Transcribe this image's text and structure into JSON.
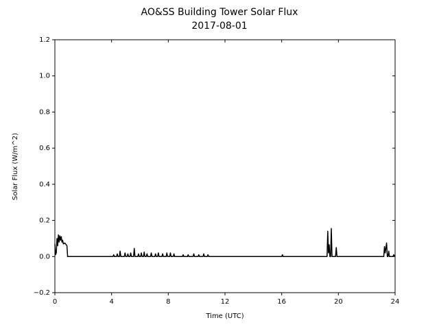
{
  "chart_data": {
    "type": "line",
    "title": "AO&SS Building Tower Solar Flux",
    "subtitle": "2017-08-01",
    "x_label": "Time (UTC)",
    "y_label": "Solar Flux (W/m^2)",
    "color": "#000000",
    "xlim": [
      0,
      24
    ],
    "xticks": [
      0,
      4,
      8,
      12,
      16,
      20,
      24
    ],
    "ylim": [
      -0.2,
      1.2
    ],
    "yticks": [
      {
        "value": -0.2,
        "label": "−0.2"
      },
      {
        "value": 0,
        "label": "0.0"
      },
      0.2,
      0.4,
      0.6,
      0.8,
      {
        "value": 1,
        "label": "1.0"
      },
      1.2
    ],
    "x": [
      0,
      0.05,
      0.1,
      0.15,
      0.2,
      0.25,
      0.3,
      0.35,
      0.4,
      0.45,
      0.5,
      0.55,
      0.6,
      0.7,
      0.8,
      0.85,
      0.9,
      4.1,
      4.15,
      4.2,
      4.35,
      4.4,
      4.45,
      4.55,
      4.6,
      4.65,
      4.9,
      4.95,
      5.0,
      5.1,
      5.15,
      5.2,
      5.3,
      5.35,
      5.4,
      5.55,
      5.6,
      5.65,
      5.85,
      5.9,
      5.95,
      6.05,
      6.1,
      6.15,
      6.25,
      6.3,
      6.35,
      6.45,
      6.5,
      6.55,
      6.75,
      6.8,
      6.85,
      7.05,
      7.1,
      7.15,
      7.25,
      7.3,
      7.35,
      7.55,
      7.6,
      7.65,
      7.85,
      7.9,
      7.95,
      8.1,
      8.15,
      8.2,
      8.35,
      8.4,
      8.45,
      9.0,
      9.05,
      9.1,
      9.35,
      9.4,
      9.45,
      9.75,
      9.8,
      9.85,
      10.1,
      10.15,
      10.2,
      10.45,
      10.5,
      10.55,
      10.75,
      10.8,
      10.85,
      16.0,
      16.05,
      16.1,
      19.2,
      19.25,
      19.3,
      19.35,
      19.4,
      19.45,
      19.5,
      19.55,
      19.8,
      19.85,
      19.9,
      23.2,
      23.25,
      23.3,
      23.4,
      23.45,
      23.5,
      23.55,
      23.6,
      23.85,
      23.9,
      24
    ],
    "values": [
      0.07,
      0.01,
      0.02,
      0.1,
      0.06,
      0.12,
      0.08,
      0.115,
      0.09,
      0.11,
      0.08,
      0.09,
      0.07,
      0.075,
      0.065,
      0.06,
      0,
      0,
      0.01,
      0,
      0,
      0.015,
      0,
      0,
      0.03,
      0,
      0,
      0.02,
      0,
      0,
      0.015,
      0,
      0,
      0.02,
      0,
      0,
      0.045,
      0,
      0,
      0.015,
      0,
      0,
      0.02,
      0,
      0,
      0.025,
      0,
      0,
      0.015,
      0,
      0,
      0.02,
      0,
      0,
      0.015,
      0,
      0,
      0.02,
      0,
      0,
      0.015,
      0,
      0,
      0.02,
      0,
      0,
      0.02,
      0,
      0,
      0.015,
      0,
      0,
      0.01,
      0,
      0,
      0.01,
      0,
      0,
      0.015,
      0,
      0,
      0.01,
      0,
      0,
      0.015,
      0,
      0,
      0.01,
      0,
      0,
      0.01,
      0,
      0,
      0.14,
      0.02,
      0.065,
      0,
      0,
      0.155,
      0,
      0,
      0.05,
      0,
      0,
      0.055,
      0.02,
      0.075,
      0,
      0,
      0.03,
      0,
      0,
      0.01,
      0
    ]
  }
}
